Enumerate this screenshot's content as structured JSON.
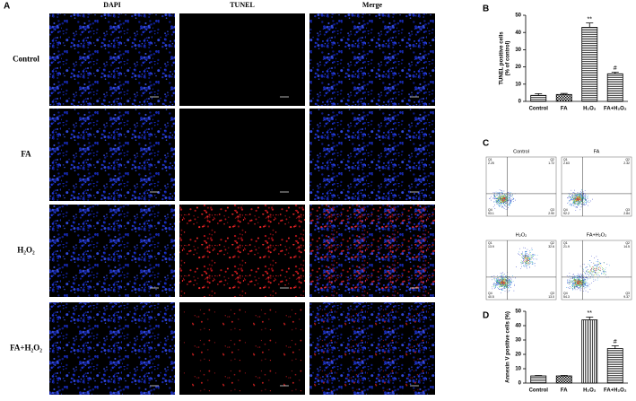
{
  "panel_a": {
    "label": "A",
    "columns": [
      "DAPI",
      "TUNEL",
      "Merge"
    ],
    "rows": [
      "Control",
      "FA",
      "H₂O₂",
      "FA+H₂O₂"
    ]
  },
  "panel_c": {
    "label": "C",
    "plots": [
      {
        "title": "Control",
        "quadrants": [
          {
            "name": "Q1",
            "value": "2.25"
          },
          {
            "name": "Q2",
            "value": "1.72"
          },
          {
            "name": "Q4",
            "value": "93.1"
          },
          {
            "name": "Q3",
            "value": "2.90"
          }
        ]
      },
      {
        "title": "FA",
        "quadrants": [
          {
            "name": "Q1",
            "value": "2.63"
          },
          {
            "name": "Q2",
            "value": "2.32"
          },
          {
            "name": "Q4",
            "value": "92.2"
          },
          {
            "name": "Q3",
            "value": "2.84"
          }
        ]
      },
      {
        "title": "H₂O₂",
        "quadrants": [
          {
            "name": "Q1",
            "value": "13.9"
          },
          {
            "name": "Q2",
            "value": "32.6"
          },
          {
            "name": "Q4",
            "value": "40.5"
          },
          {
            "name": "Q3",
            "value": "13.0"
          }
        ]
      },
      {
        "title": "FA+H₂O₂",
        "quadrants": [
          {
            "name": "Q1",
            "value": "21.9"
          },
          {
            "name": "Q2",
            "value": "14.5"
          },
          {
            "name": "Q4",
            "value": "54.3"
          },
          {
            "name": "Q3",
            "value": "9.37"
          }
        ]
      }
    ]
  },
  "chart_data": [
    {
      "type": "bar",
      "panel": "B",
      "ylabel": [
        "TUNEL positive cells",
        "(% of control)"
      ],
      "categories": [
        "Control",
        "FA",
        "H₂O₂",
        "FA+H₂O₂"
      ],
      "values": [
        3.5,
        4,
        43,
        16
      ],
      "errors": [
        1,
        0.6,
        2.5,
        1
      ],
      "significance": [
        null,
        null,
        "**",
        "#"
      ],
      "ylim": [
        0,
        50
      ],
      "yticks": [
        0,
        10,
        20,
        30,
        40,
        50
      ]
    },
    {
      "type": "bar",
      "panel": "D",
      "ylabel": [
        "Annexin V positive cells (%)"
      ],
      "categories": [
        "Control",
        "FA",
        "H₂O₂",
        "FA+H₂O₂"
      ],
      "values": [
        5,
        5,
        44,
        24
      ],
      "errors": [
        0.3,
        0.3,
        2,
        2
      ],
      "significance": [
        null,
        null,
        "**",
        "#"
      ],
      "ylim": [
        0,
        50
      ],
      "yticks": [
        0,
        10,
        20,
        30,
        40,
        50
      ]
    }
  ]
}
